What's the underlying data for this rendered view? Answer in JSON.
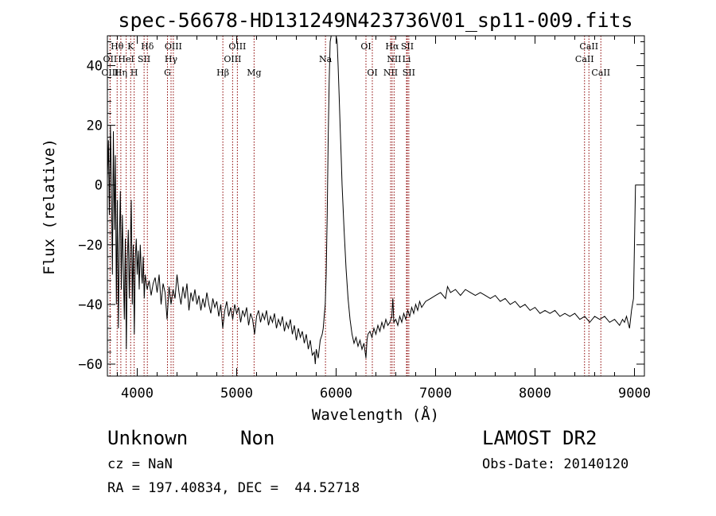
{
  "chart_data": {
    "type": "line",
    "title": "spec-56678-HD131249N423736V01_sp11-009.fits",
    "xlabel": "Wavelength (Å)",
    "ylabel": "Flux (relative)",
    "xlim": [
      3700,
      9100
    ],
    "ylim": [
      -64,
      50
    ],
    "xticks": [
      4000,
      5000,
      6000,
      7000,
      8000,
      9000
    ],
    "yticks": [
      -60,
      -40,
      -20,
      0,
      20,
      40
    ],
    "grid": false,
    "series": [
      {
        "points": [
          [
            3700,
            2
          ],
          [
            3710,
            15
          ],
          [
            3720,
            -10
          ],
          [
            3730,
            20
          ],
          [
            3740,
            0
          ],
          [
            3750,
            -30
          ],
          [
            3760,
            18
          ],
          [
            3770,
            -15
          ],
          [
            3780,
            10
          ],
          [
            3790,
            -40
          ],
          [
            3800,
            -5
          ],
          [
            3810,
            -48
          ],
          [
            3820,
            -20
          ],
          [
            3830,
            -2
          ],
          [
            3840,
            -35
          ],
          [
            3850,
            -10
          ],
          [
            3860,
            -28
          ],
          [
            3870,
            -45
          ],
          [
            3880,
            -18
          ],
          [
            3890,
            -55
          ],
          [
            3900,
            -25
          ],
          [
            3910,
            -15
          ],
          [
            3920,
            -38
          ],
          [
            3930,
            -22
          ],
          [
            3940,
            -5
          ],
          [
            3950,
            -40
          ],
          [
            3960,
            -20
          ],
          [
            3970,
            -50
          ],
          [
            3980,
            -25
          ],
          [
            3990,
            -18
          ],
          [
            4000,
            -30
          ],
          [
            4010,
            -22
          ],
          [
            4020,
            -35
          ],
          [
            4030,
            -20
          ],
          [
            4040,
            -28
          ],
          [
            4050,
            -33
          ],
          [
            4060,
            -24
          ],
          [
            4070,
            -38
          ],
          [
            4080,
            -30
          ],
          [
            4100,
            -35
          ],
          [
            4120,
            -32
          ],
          [
            4140,
            -37
          ],
          [
            4160,
            -33
          ],
          [
            4180,
            -31
          ],
          [
            4200,
            -36
          ],
          [
            4220,
            -30
          ],
          [
            4240,
            -40
          ],
          [
            4260,
            -33
          ],
          [
            4280,
            -36
          ],
          [
            4300,
            -45
          ],
          [
            4320,
            -34
          ],
          [
            4340,
            -40
          ],
          [
            4360,
            -35
          ],
          [
            4380,
            -38
          ],
          [
            4400,
            -30
          ],
          [
            4420,
            -36
          ],
          [
            4440,
            -40
          ],
          [
            4460,
            -34
          ],
          [
            4480,
            -38
          ],
          [
            4500,
            -33
          ],
          [
            4520,
            -42
          ],
          [
            4540,
            -36
          ],
          [
            4560,
            -39
          ],
          [
            4580,
            -35
          ],
          [
            4600,
            -40
          ],
          [
            4620,
            -37
          ],
          [
            4640,
            -42
          ],
          [
            4660,
            -38
          ],
          [
            4680,
            -41
          ],
          [
            4700,
            -36
          ],
          [
            4720,
            -40
          ],
          [
            4740,
            -43
          ],
          [
            4760,
            -38
          ],
          [
            4780,
            -41
          ],
          [
            4800,
            -39
          ],
          [
            4820,
            -44
          ],
          [
            4840,
            -40
          ],
          [
            4860,
            -48
          ],
          [
            4880,
            -42
          ],
          [
            4900,
            -39
          ],
          [
            4920,
            -44
          ],
          [
            4940,
            -41
          ],
          [
            4960,
            -45
          ],
          [
            4980,
            -40
          ],
          [
            5000,
            -43
          ],
          [
            5020,
            -41
          ],
          [
            5040,
            -46
          ],
          [
            5060,
            -42
          ],
          [
            5080,
            -44
          ],
          [
            5100,
            -41
          ],
          [
            5120,
            -47
          ],
          [
            5140,
            -43
          ],
          [
            5160,
            -45
          ],
          [
            5180,
            -50
          ],
          [
            5200,
            -44
          ],
          [
            5220,
            -42
          ],
          [
            5240,
            -46
          ],
          [
            5260,
            -43
          ],
          [
            5280,
            -45
          ],
          [
            5300,
            -42
          ],
          [
            5320,
            -47
          ],
          [
            5340,
            -44
          ],
          [
            5360,
            -46
          ],
          [
            5380,
            -43
          ],
          [
            5400,
            -48
          ],
          [
            5420,
            -45
          ],
          [
            5440,
            -47
          ],
          [
            5460,
            -44
          ],
          [
            5480,
            -49
          ],
          [
            5500,
            -46
          ],
          [
            5520,
            -48
          ],
          [
            5540,
            -45
          ],
          [
            5560,
            -50
          ],
          [
            5580,
            -47
          ],
          [
            5600,
            -52
          ],
          [
            5620,
            -48
          ],
          [
            5640,
            -51
          ],
          [
            5660,
            -49
          ],
          [
            5680,
            -53
          ],
          [
            5700,
            -50
          ],
          [
            5720,
            -55
          ],
          [
            5740,
            -52
          ],
          [
            5760,
            -57
          ],
          [
            5780,
            -56
          ],
          [
            5790,
            -60
          ],
          [
            5800,
            -55
          ],
          [
            5820,
            -58
          ],
          [
            5840,
            -52
          ],
          [
            5860,
            -50
          ],
          [
            5870,
            -48
          ],
          [
            5880,
            -44
          ],
          [
            5890,
            -40
          ],
          [
            5900,
            -30
          ],
          [
            5910,
            -10
          ],
          [
            5920,
            15
          ],
          [
            5930,
            35
          ],
          [
            5940,
            48
          ],
          [
            5950,
            50
          ],
          [
            5980,
            50
          ],
          [
            6000,
            50
          ],
          [
            6010,
            48
          ],
          [
            6020,
            40
          ],
          [
            6030,
            30
          ],
          [
            6040,
            20
          ],
          [
            6050,
            10
          ],
          [
            6060,
            0
          ],
          [
            6080,
            -15
          ],
          [
            6100,
            -28
          ],
          [
            6120,
            -38
          ],
          [
            6140,
            -45
          ],
          [
            6160,
            -50
          ],
          [
            6180,
            -53
          ],
          [
            6200,
            -51
          ],
          [
            6220,
            -54
          ],
          [
            6240,
            -52
          ],
          [
            6260,
            -55
          ],
          [
            6280,
            -53
          ],
          [
            6300,
            -58
          ],
          [
            6310,
            -52
          ],
          [
            6320,
            -50
          ],
          [
            6340,
            -49
          ],
          [
            6360,
            -51
          ],
          [
            6380,
            -48
          ],
          [
            6400,
            -50
          ],
          [
            6420,
            -47
          ],
          [
            6440,
            -49
          ],
          [
            6460,
            -46
          ],
          [
            6480,
            -48
          ],
          [
            6500,
            -45
          ],
          [
            6520,
            -47
          ],
          [
            6540,
            -46
          ],
          [
            6560,
            -44
          ],
          [
            6570,
            -38
          ],
          [
            6580,
            -46
          ],
          [
            6600,
            -45
          ],
          [
            6620,
            -47
          ],
          [
            6640,
            -44
          ],
          [
            6660,
            -46
          ],
          [
            6680,
            -43
          ],
          [
            6700,
            -45
          ],
          [
            6720,
            -42
          ],
          [
            6740,
            -44
          ],
          [
            6760,
            -41
          ],
          [
            6780,
            -43
          ],
          [
            6800,
            -40
          ],
          [
            6820,
            -42
          ],
          [
            6840,
            -39
          ],
          [
            6860,
            -41
          ],
          [
            6880,
            -40
          ],
          [
            6900,
            -39
          ],
          [
            6950,
            -38
          ],
          [
            7000,
            -37
          ],
          [
            7050,
            -36
          ],
          [
            7100,
            -38
          ],
          [
            7120,
            -34
          ],
          [
            7150,
            -36
          ],
          [
            7200,
            -35
          ],
          [
            7250,
            -37
          ],
          [
            7300,
            -35
          ],
          [
            7350,
            -36
          ],
          [
            7400,
            -37
          ],
          [
            7450,
            -36
          ],
          [
            7500,
            -37
          ],
          [
            7550,
            -38
          ],
          [
            7600,
            -37
          ],
          [
            7650,
            -39
          ],
          [
            7700,
            -38
          ],
          [
            7750,
            -40
          ],
          [
            7800,
            -39
          ],
          [
            7850,
            -41
          ],
          [
            7900,
            -40
          ],
          [
            7950,
            -42
          ],
          [
            8000,
            -41
          ],
          [
            8050,
            -43
          ],
          [
            8100,
            -42
          ],
          [
            8150,
            -43
          ],
          [
            8200,
            -42
          ],
          [
            8250,
            -44
          ],
          [
            8300,
            -43
          ],
          [
            8350,
            -44
          ],
          [
            8400,
            -43
          ],
          [
            8450,
            -45
          ],
          [
            8500,
            -44
          ],
          [
            8550,
            -46
          ],
          [
            8600,
            -44
          ],
          [
            8650,
            -45
          ],
          [
            8700,
            -44
          ],
          [
            8750,
            -46
          ],
          [
            8800,
            -45
          ],
          [
            8850,
            -47
          ],
          [
            8880,
            -45
          ],
          [
            8900,
            -46
          ],
          [
            8920,
            -44
          ],
          [
            8950,
            -48
          ],
          [
            8970,
            -42
          ],
          [
            8990,
            -38
          ],
          [
            9000,
            -20
          ],
          [
            9010,
            0
          ],
          [
            9020,
            0
          ]
        ]
      }
    ],
    "line_labels_color": "#8b0000",
    "spectral_lines": [
      {
        "label": "Hθ",
        "x": 3798,
        "row": 1
      },
      {
        "label": "OII",
        "x": 3727,
        "row": 2
      },
      {
        "label": "OIII",
        "x": 3727,
        "row": 3
      },
      {
        "label": "K",
        "x": 3934,
        "row": 1
      },
      {
        "label": "HeI",
        "x": 3889,
        "row": 2
      },
      {
        "label": "Hη",
        "x": 3835,
        "row": 3
      },
      {
        "label": "SII",
        "x": 4069,
        "row": 2
      },
      {
        "label": "H",
        "x": 3969,
        "row": 3
      },
      {
        "label": "Hδ",
        "x": 4102,
        "row": 1
      },
      {
        "label": "OIII",
        "x": 4363,
        "row": 1
      },
      {
        "label": "Hγ",
        "x": 4340,
        "row": 2
      },
      {
        "label": "G",
        "x": 4304,
        "row": 3
      },
      {
        "label": "OIII",
        "x": 5007,
        "row": 1
      },
      {
        "label": "OIII",
        "x": 4959,
        "row": 2
      },
      {
        "label": "Hβ",
        "x": 4861,
        "row": 3
      },
      {
        "label": "Mg",
        "x": 5175,
        "row": 3
      },
      {
        "label": "Na",
        "x": 5893,
        "row": 2
      },
      {
        "label": "OI",
        "x": 6300,
        "row": 1
      },
      {
        "label": "OI",
        "x": 6364,
        "row": 3
      },
      {
        "label": "Hα",
        "x": 6563,
        "row": 1
      },
      {
        "label": "SII",
        "x": 6716,
        "row": 1
      },
      {
        "label": "NII",
        "x": 6583,
        "row": 2
      },
      {
        "label": "Li",
        "x": 6708,
        "row": 2
      },
      {
        "label": "NII",
        "x": 6548,
        "row": 3
      },
      {
        "label": "SII",
        "x": 6731,
        "row": 3
      },
      {
        "label": "CaII",
        "x": 8542,
        "row": 1
      },
      {
        "label": "CaII",
        "x": 8498,
        "row": 2
      },
      {
        "label": "CaII",
        "x": 8662,
        "row": 3
      }
    ]
  },
  "footer": {
    "object_name": "Unknown",
    "object_class": "Non",
    "survey": "LAMOST DR2",
    "cz": "cz = NaN",
    "obs_date": "Obs-Date: 20140120",
    "coords": "RA = 197.40834, DEC =  44.52718"
  }
}
